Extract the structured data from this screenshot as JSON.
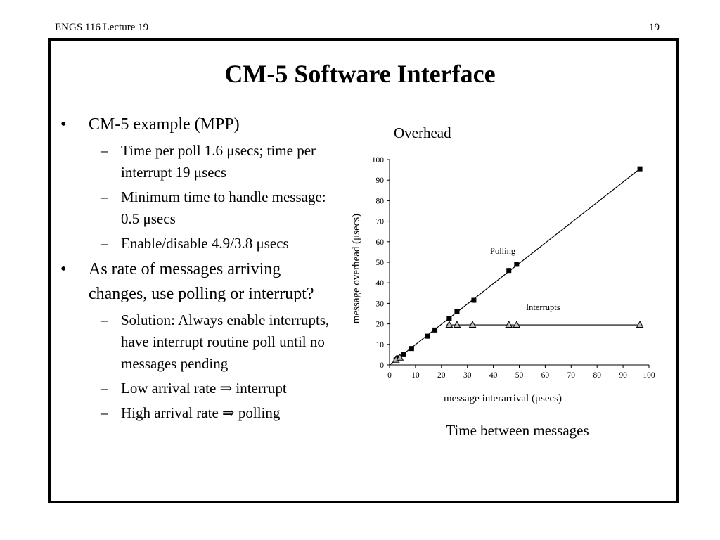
{
  "header": {
    "course": "ENGS 116  Lecture 19",
    "page_number": "19"
  },
  "title": "CM-5 Software Interface",
  "bullets": [
    {
      "marker": "•",
      "text": "CM-5 example (MPP)",
      "sub": [
        {
          "marker": "–",
          "text": "Time per poll 1.6 μsecs;  time per interrupt 19 μsecs"
        },
        {
          "marker": "–",
          "text": "Minimum time to handle message:  0.5 μsecs"
        },
        {
          "marker": "–",
          "text": "Enable/disable 4.9/3.8 μsecs"
        }
      ]
    },
    {
      "marker": "•",
      "text": "As rate of messages arriving changes, use polling or interrupt?",
      "sub": [
        {
          "marker": "–",
          "text": "Solution:  Always enable interrupts, have interrupt routine poll until no messages pending"
        },
        {
          "marker": "–",
          "text": "Low arrival rate ⇒ interrupt"
        },
        {
          "marker": "–",
          "text": "High arrival rate ⇒ polling"
        }
      ]
    }
  ],
  "chart_data": {
    "type": "scatter",
    "title": "Overhead",
    "caption": "Time between messages",
    "xlabel": "message interarrival (μsecs)",
    "ylabel": "message overhead (μsecs)",
    "xlim": [
      0,
      100
    ],
    "ylim": [
      0,
      100
    ],
    "x_ticks": [
      0,
      10,
      20,
      30,
      40,
      50,
      60,
      70,
      80,
      90,
      100
    ],
    "y_ticks": [
      0,
      10,
      20,
      30,
      40,
      50,
      60,
      70,
      80,
      90,
      100
    ],
    "grid": false,
    "series": [
      {
        "name": "Polling",
        "marker": "square",
        "color": "#000000",
        "x": [
          2.5,
          3.5,
          5.5,
          8.5,
          14.5,
          17.5,
          23,
          26,
          32.5,
          46,
          49,
          96.5
        ],
        "y": [
          2.5,
          3.5,
          5,
          8,
          14,
          17,
          22.5,
          26,
          31.5,
          46,
          49,
          95.5
        ],
        "line_from": [
          0,
          0
        ],
        "line_to": [
          96.5,
          95.5
        ]
      },
      {
        "name": "Interrupts",
        "marker": "triangle",
        "color": "#000000",
        "x": [
          2.5,
          4,
          23,
          26,
          32,
          46,
          49,
          96.5
        ],
        "y": [
          2.5,
          3.5,
          19.5,
          19.5,
          19.5,
          19.5,
          19.5,
          19.5
        ],
        "line_from": [
          22,
          19.5
        ],
        "line_to": [
          96.5,
          19.5
        ]
      }
    ]
  }
}
